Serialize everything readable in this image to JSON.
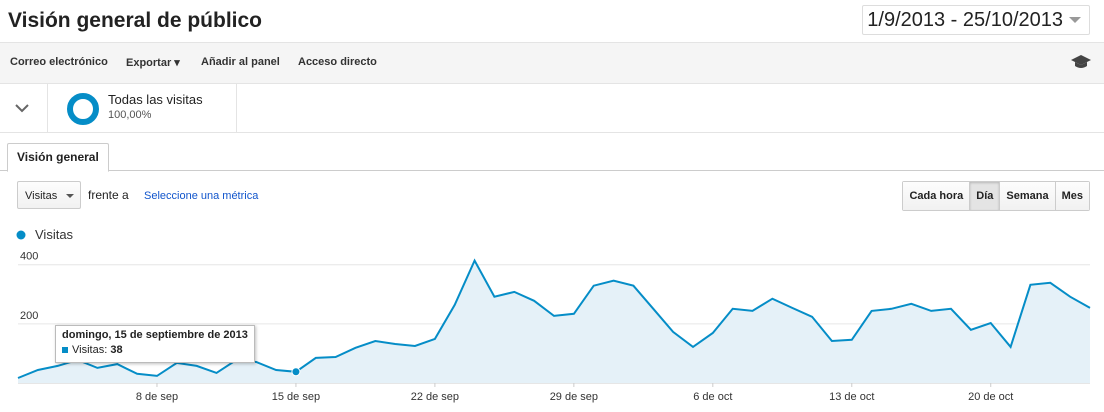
{
  "header": {
    "title": "Visión general de público",
    "date_range": "1/9/2013 - 25/10/2013"
  },
  "toolbar": {
    "items": [
      "Correo electrónico",
      "Exportar",
      "Añadir al panel",
      "Acceso directo"
    ]
  },
  "segment": {
    "name": "Todas las visitas",
    "share": "100,00%"
  },
  "tabs": [
    "Visión general"
  ],
  "controls": {
    "metric": "Visitas",
    "versus": "frente a",
    "select_metric": "Seleccione una métrica",
    "granularity": [
      "Cada hora",
      "Día",
      "Semana",
      "Mes"
    ]
  },
  "tooltip": {
    "date": "domingo, 15 de septiembre de 2013",
    "label": "Visitas:"
  },
  "chart_data": {
    "type": "line",
    "categories": [
      null,
      null,
      null,
      null,
      null,
      null,
      null,
      "8 de sep",
      null,
      null,
      null,
      null,
      null,
      null,
      "15 de sep",
      null,
      null,
      null,
      null,
      null,
      null,
      "22 de sep",
      null,
      null,
      null,
      null,
      null,
      null,
      "29 de sep",
      null,
      null,
      null,
      null,
      null,
      null,
      "6 de oct",
      null,
      null,
      null,
      null,
      null,
      null,
      "13 de oct",
      null,
      null,
      null,
      null,
      null,
      null,
      "20 de oct",
      null,
      null,
      null,
      null,
      null
    ],
    "series": [
      {
        "name": "Visitas",
        "color": "#058dc7",
        "values": [
          17,
          44,
          58,
          78,
          51,
          64,
          31,
          24,
          68,
          58,
          34,
          78,
          71,
          44,
          38,
          85,
          88,
          119,
          142,
          132,
          125,
          149,
          264,
          414,
          292,
          308,
          278,
          227,
          234,
          329,
          346,
          329,
          251,
          173,
          122,
          169,
          251,
          244,
          285,
          254,
          224,
          142,
          146,
          244,
          251,
          268,
          244,
          251,
          180,
          203,
          122,
          332,
          339,
          292,
          254
        ]
      }
    ],
    "ylim": [
      0,
      460
    ],
    "yticks": [
      200,
      400
    ],
    "grid": true
  }
}
